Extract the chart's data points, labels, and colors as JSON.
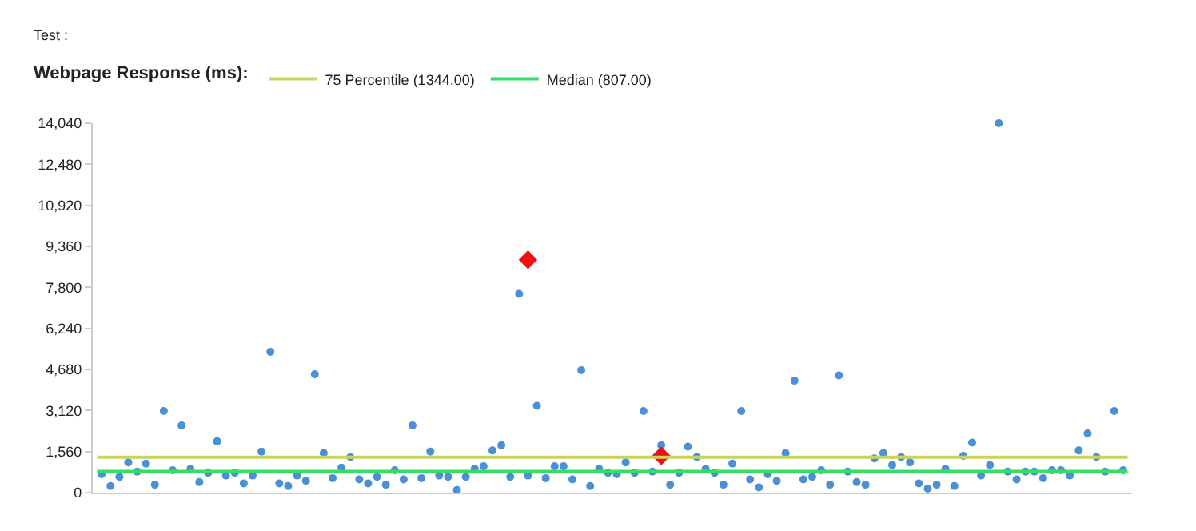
{
  "chart_data": {
    "type": "scatter",
    "annotations": [
      "Test :"
    ],
    "legend_title": "Webpage Response (ms):",
    "categories": [
      null,
      null,
      null,
      null,
      null,
      null,
      null,
      null,
      null,
      null,
      null,
      null,
      null,
      null,
      null,
      null,
      null,
      null,
      null,
      null,
      null,
      null,
      null,
      null,
      null,
      null,
      null,
      null,
      null,
      null,
      null,
      null,
      null,
      null,
      null,
      null,
      null,
      null,
      null,
      null,
      null,
      null,
      null,
      null,
      null,
      null,
      null,
      null,
      null,
      null,
      null,
      null,
      null,
      null,
      null,
      null,
      null,
      null,
      null,
      null,
      null,
      null,
      null,
      null,
      null,
      null,
      null,
      null,
      null,
      null,
      null,
      null,
      null,
      null,
      null,
      null,
      null,
      null,
      null,
      null,
      null,
      null,
      null,
      null,
      null,
      null,
      null,
      null,
      null,
      null,
      null,
      null,
      null,
      null,
      null,
      null,
      null,
      null,
      null,
      null,
      null,
      null,
      null,
      null,
      null,
      null,
      null,
      null,
      null,
      null,
      null,
      null,
      null,
      null,
      null,
      null
    ],
    "series": [
      {
        "color": "#4a90d9",
        "marker": "circle",
        "values": [
          700,
          250,
          600,
          1150,
          800,
          1100,
          300,
          3100,
          850,
          2550,
          900,
          400,
          750,
          1950,
          650,
          750,
          350,
          650,
          1560,
          5350,
          350,
          250,
          650,
          450,
          4500,
          1500,
          550,
          950,
          1350,
          500,
          350,
          600,
          300,
          850,
          500,
          2550,
          550,
          1560,
          650,
          600,
          100,
          600,
          900,
          1000,
          1600,
          1800,
          600,
          7550,
          650,
          3300,
          550,
          1000,
          1000,
          500,
          4650,
          250,
          900,
          750,
          700,
          1150,
          750,
          3100,
          800,
          1800,
          300,
          750,
          1750,
          1350,
          900,
          750,
          300,
          1100,
          3100,
          500,
          200,
          700,
          450,
          1500,
          4250,
          500,
          600,
          850,
          300,
          4450,
          800,
          400,
          300,
          1300,
          1500,
          1050,
          1350,
          1150,
          350,
          150,
          300,
          900,
          250,
          1400,
          1900,
          650,
          1050,
          14040,
          800,
          500,
          800,
          800,
          550,
          850,
          850,
          650,
          1600,
          2250,
          1350,
          800,
          3100,
          850
        ]
      },
      {
        "color": "#ee1111",
        "marker": "diamond",
        "values": [
          null,
          null,
          null,
          null,
          null,
          null,
          null,
          null,
          null,
          null,
          null,
          null,
          null,
          null,
          null,
          null,
          null,
          null,
          null,
          null,
          null,
          null,
          null,
          null,
          null,
          null,
          null,
          null,
          null,
          null,
          null,
          null,
          null,
          null,
          null,
          null,
          null,
          null,
          null,
          null,
          null,
          null,
          null,
          null,
          null,
          null,
          null,
          null,
          8850,
          null,
          null,
          null,
          null,
          null,
          null,
          null,
          null,
          null,
          null,
          null,
          null,
          null,
          null,
          1400,
          null,
          null,
          null,
          null,
          null,
          null,
          null,
          null,
          null,
          null,
          null,
          null,
          null,
          null,
          null,
          null,
          null,
          null,
          null,
          null,
          null,
          null,
          null,
          null,
          null,
          null,
          null,
          null,
          null,
          null,
          null,
          null,
          null,
          null,
          null,
          null,
          null,
          null,
          null,
          null,
          null,
          null,
          null,
          null,
          null,
          null,
          null,
          null,
          null,
          null,
          null,
          null
        ]
      }
    ],
    "ref_lines": [
      {
        "axis": "y",
        "value": 1344,
        "label": "75 Percentile (1344.00)",
        "color": "#c8d45a"
      },
      {
        "axis": "y",
        "value": 807,
        "label": "Median (807.00)",
        "color": "#33dd66"
      }
    ],
    "ylim": [
      0,
      14040
    ],
    "yticks": [
      0,
      {
        "value": 1560,
        "label": "1,560"
      },
      {
        "value": 3120,
        "label": "3,120"
      },
      {
        "value": 4680,
        "label": "4,680"
      },
      {
        "value": 6240,
        "label": "6,240"
      },
      {
        "value": 7800,
        "label": "7,800"
      },
      {
        "value": 9360,
        "label": "9,360"
      },
      {
        "value": 10920,
        "label": "10,920"
      },
      {
        "value": 12480,
        "label": "12,480"
      },
      {
        "value": 14040,
        "label": "14,040"
      }
    ],
    "grid": false,
    "legend": "top left"
  }
}
